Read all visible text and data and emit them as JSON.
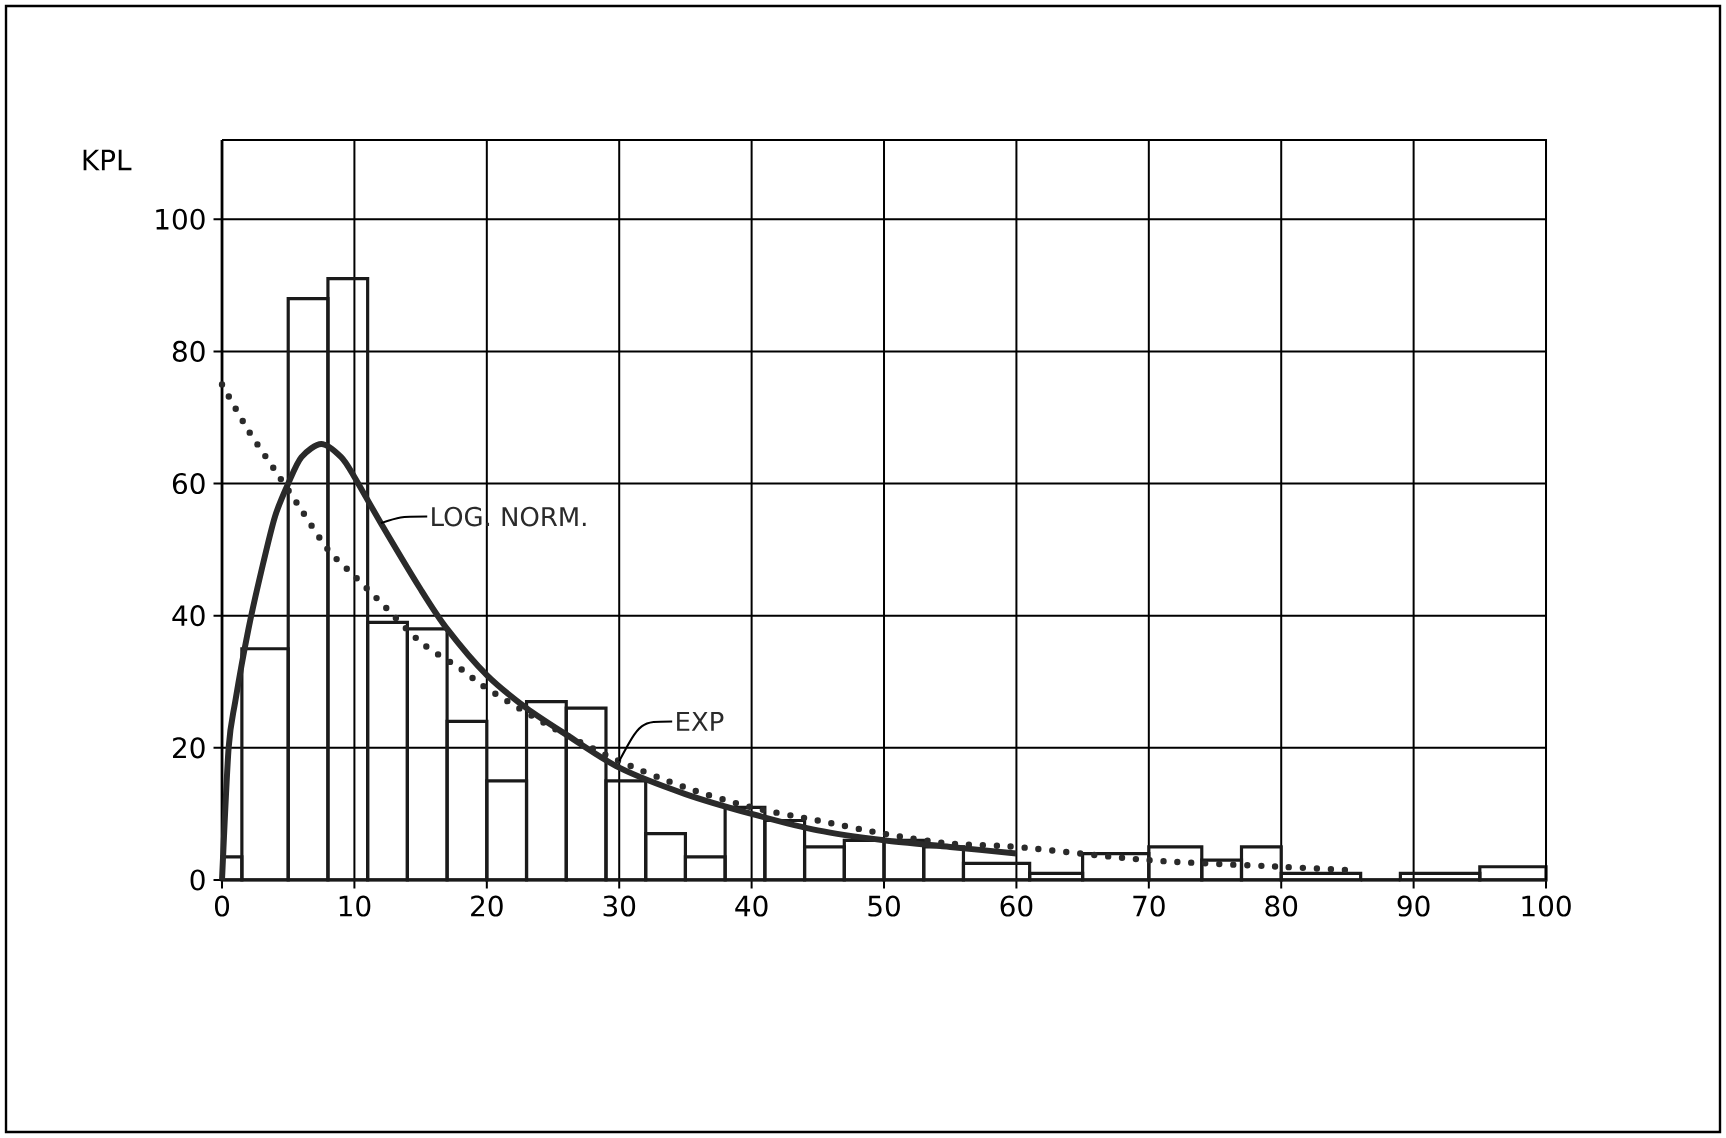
{
  "chart_data": {
    "type": "histogram",
    "ylabel": "KPL",
    "bins": [
      0,
      1.5,
      5,
      8,
      11,
      14,
      17,
      20,
      23,
      26,
      29,
      32,
      35,
      38,
      41,
      44,
      47,
      50,
      53,
      56,
      61,
      65,
      70,
      74,
      77,
      80,
      86,
      89,
      95,
      100
    ],
    "values": [
      3.5,
      35,
      88,
      91,
      39,
      38,
      24,
      15,
      27,
      26,
      15,
      7,
      3.5,
      11,
      9,
      5,
      6,
      6,
      5,
      2.5,
      1,
      4,
      5,
      3,
      5,
      1,
      0,
      1,
      2
    ],
    "color": "#1a1a1a",
    "series": [
      {
        "type": "line",
        "name": "LOG. NORM.",
        "color": "#2a2a2a",
        "line_style": "solid",
        "x": [
          0,
          0.5,
          1,
          2,
          3,
          4,
          5,
          6,
          7.5,
          9,
          10,
          12,
          15,
          17,
          20,
          23,
          26,
          30,
          35,
          40,
          45,
          50,
          55,
          60
        ],
        "values": [
          0,
          20,
          27,
          38,
          47,
          55,
          60,
          64,
          66,
          64,
          61,
          54,
          44,
          38,
          31,
          26,
          22,
          17,
          13,
          10,
          7.5,
          6,
          5,
          4
        ]
      },
      {
        "type": "line",
        "name": "EXP",
        "color": "#2a2a2a",
        "line_style": "dotted",
        "x": [
          0,
          2,
          4,
          6,
          8,
          10,
          12,
          15,
          18,
          20,
          25,
          30,
          35,
          40,
          45,
          50,
          55,
          60,
          70,
          80,
          85
        ],
        "values": [
          75,
          68,
          62,
          56,
          50,
          46,
          42,
          36,
          32,
          29,
          23,
          18,
          14,
          11,
          9,
          7,
          5.5,
          5,
          3,
          2,
          1.5
        ]
      }
    ],
    "xlim": [
      0,
      100
    ],
    "ylim": [
      0,
      112
    ],
    "xticks": [
      0,
      10,
      20,
      30,
      40,
      50,
      60,
      70,
      80,
      90,
      100
    ],
    "yticks": [
      0,
      20,
      40,
      60,
      80,
      100
    ],
    "grid": true,
    "marker": "none"
  }
}
